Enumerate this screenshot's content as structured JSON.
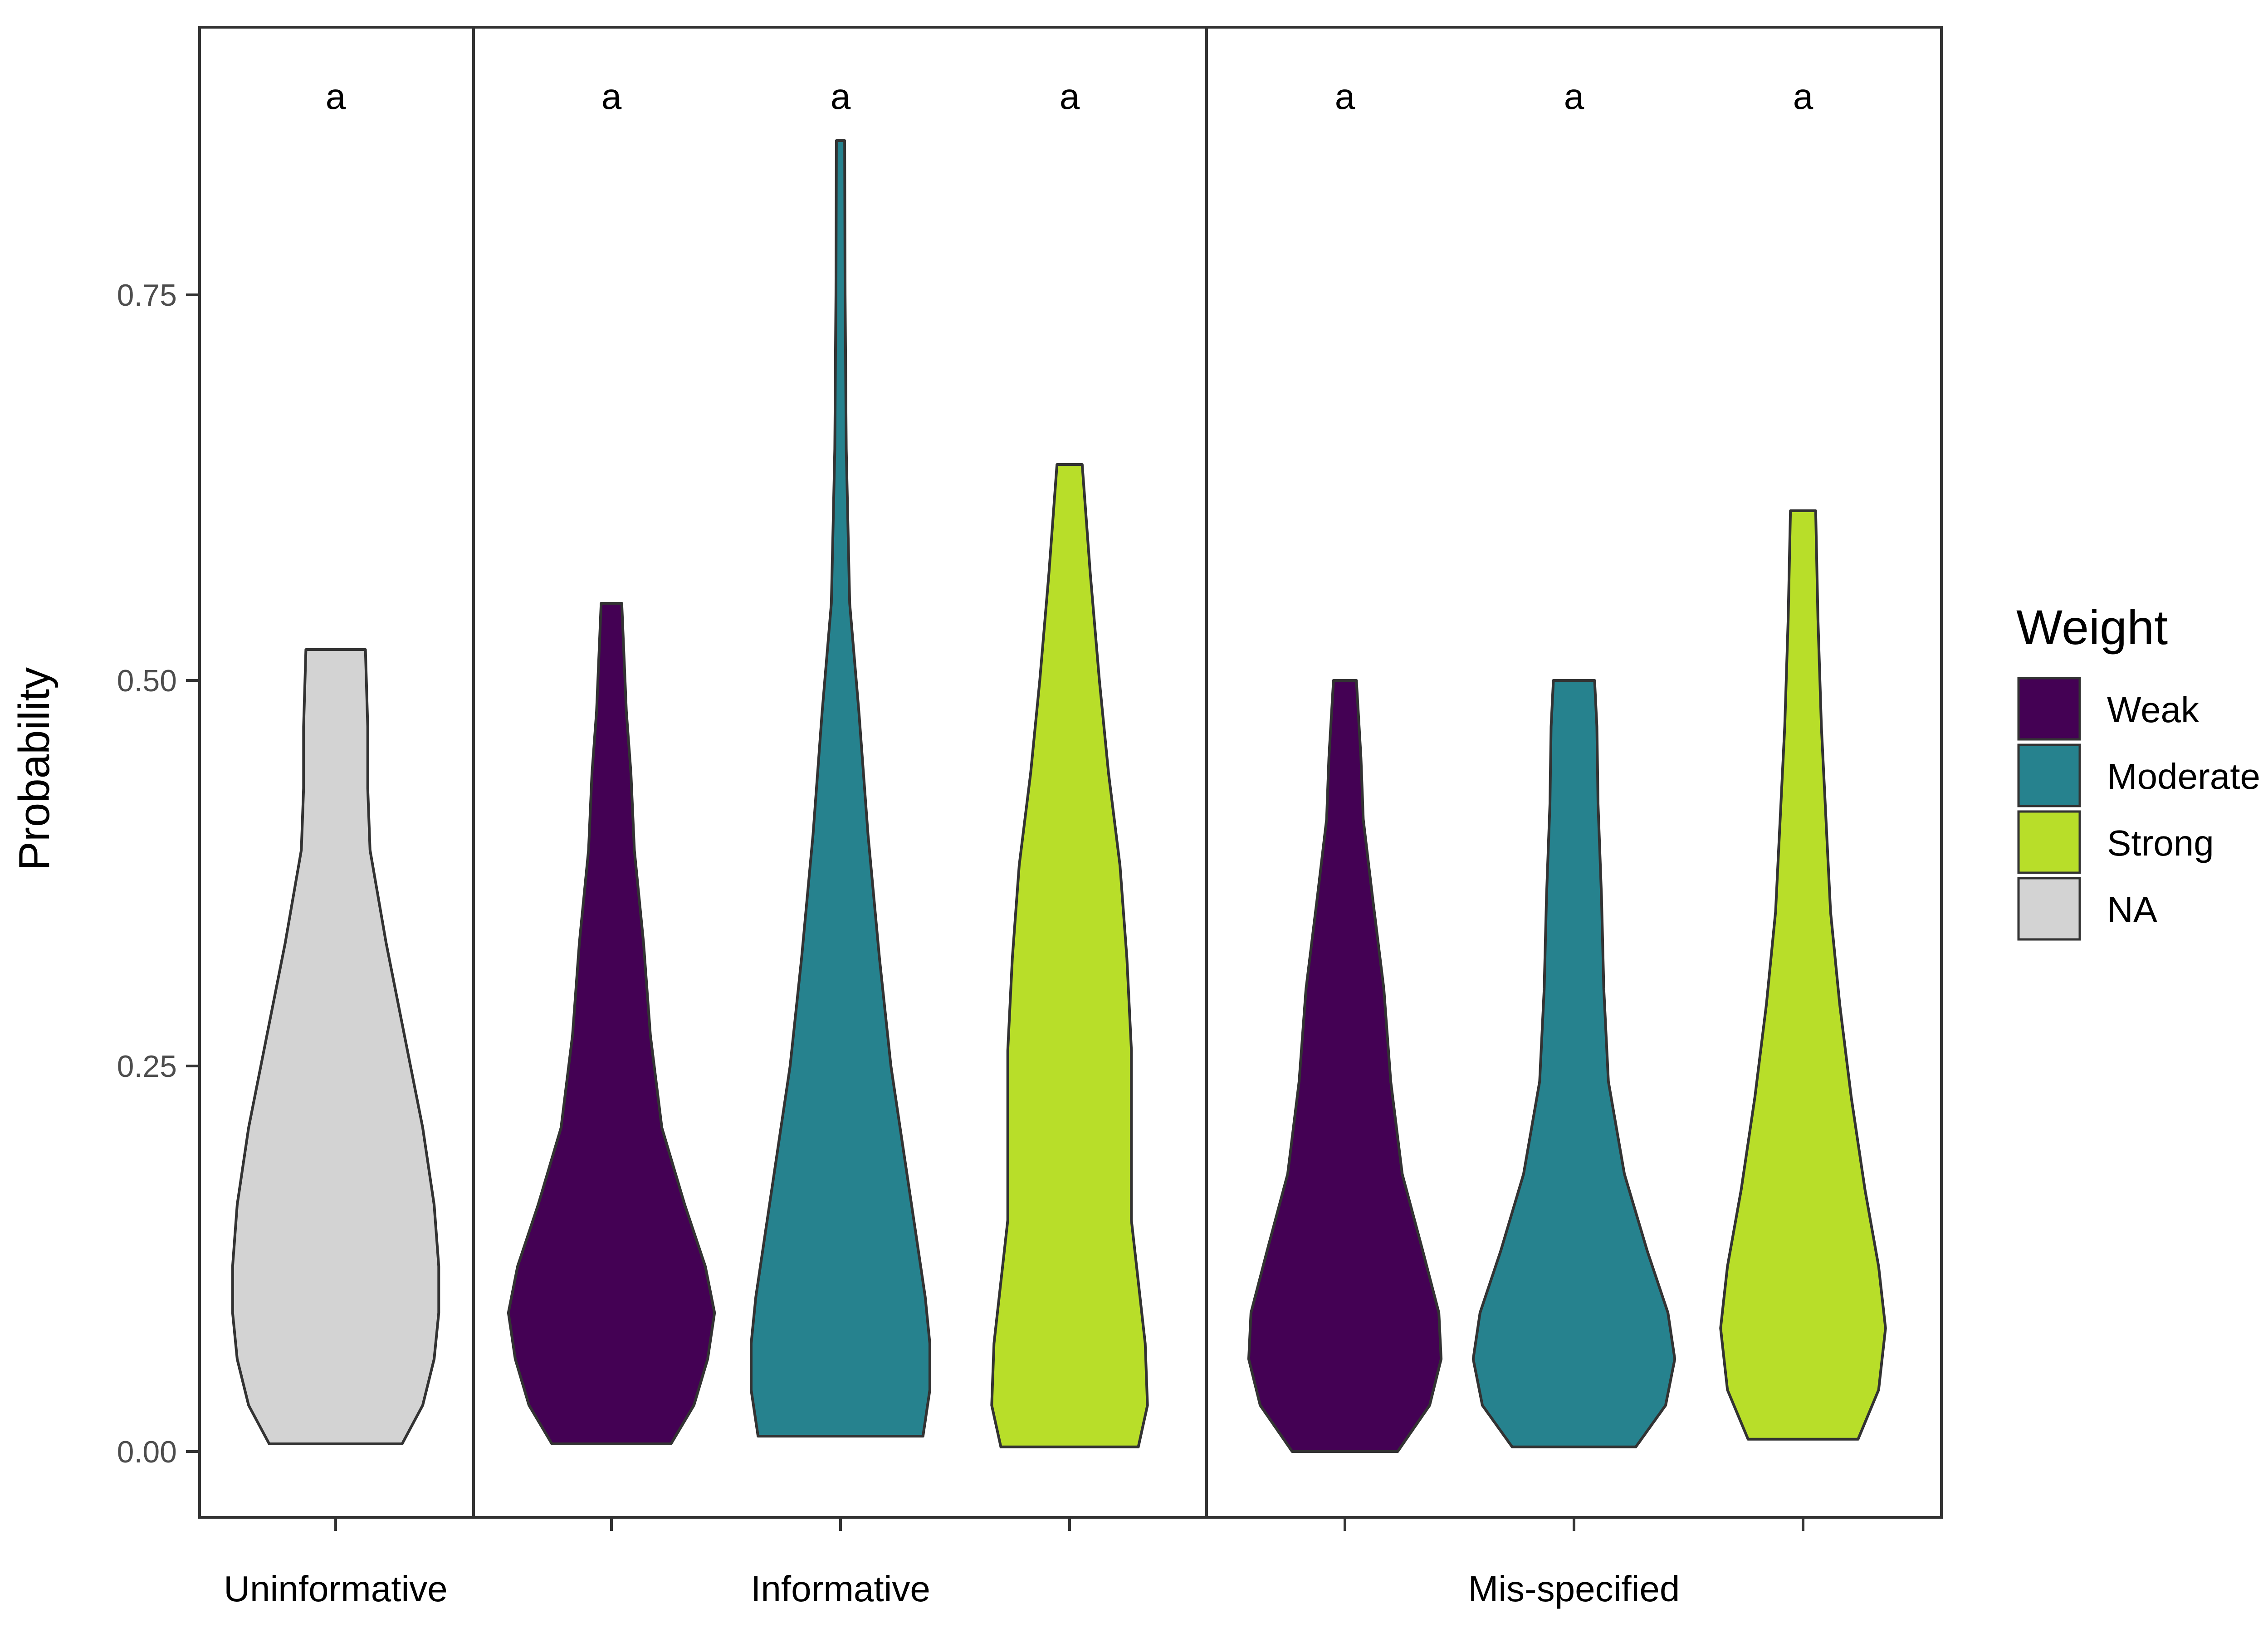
{
  "chart_data": {
    "type": "violin",
    "title": "",
    "xlabel": "",
    "ylabel": "Probability",
    "ylim": [
      -0.13,
      0.92
    ],
    "y_ticks": [
      {
        "value": 0.0,
        "label": "0.00"
      },
      {
        "value": 0.25,
        "label": "0.25"
      },
      {
        "value": 0.5,
        "label": "0.50"
      },
      {
        "value": 0.75,
        "label": "0.75"
      }
    ],
    "grid": false,
    "legend": {
      "title": "Weight",
      "position": "right",
      "entries": [
        {
          "name": "Weak",
          "color": "#440154"
        },
        {
          "name": "Moderate",
          "color": "#26828E"
        },
        {
          "name": "Strong",
          "color": "#B8DE29"
        },
        {
          "name": "NA",
          "color": "#D3D3D3"
        }
      ]
    },
    "groups": [
      {
        "label": "Uninformative",
        "slots": 1
      },
      {
        "label": "Informative",
        "slots": 3
      },
      {
        "label": "Mis-specified",
        "slots": 3
      }
    ],
    "violins": [
      {
        "group": 0,
        "weight": "NA",
        "color": "#D3D3D3",
        "significance": "a",
        "profile": [
          [
            0.005,
            0.29
          ],
          [
            0.03,
            0.38
          ],
          [
            0.06,
            0.43
          ],
          [
            0.09,
            0.45
          ],
          [
            0.12,
            0.45
          ],
          [
            0.16,
            0.43
          ],
          [
            0.21,
            0.38
          ],
          [
            0.27,
            0.3
          ],
          [
            0.33,
            0.22
          ],
          [
            0.39,
            0.15
          ],
          [
            0.43,
            0.14
          ],
          [
            0.47,
            0.14
          ],
          [
            0.52,
            0.13
          ]
        ]
      },
      {
        "group": 1,
        "weight": "Weak",
        "color": "#440154",
        "significance": "a",
        "profile": [
          [
            0.005,
            0.26
          ],
          [
            0.03,
            0.36
          ],
          [
            0.06,
            0.42
          ],
          [
            0.09,
            0.45
          ],
          [
            0.12,
            0.41
          ],
          [
            0.16,
            0.32
          ],
          [
            0.21,
            0.22
          ],
          [
            0.27,
            0.17
          ],
          [
            0.33,
            0.14
          ],
          [
            0.39,
            0.1
          ],
          [
            0.44,
            0.085
          ],
          [
            0.48,
            0.065
          ],
          [
            0.55,
            0.045
          ]
        ]
      },
      {
        "group": 1,
        "weight": "Moderate",
        "color": "#26828E",
        "significance": "a",
        "profile": [
          [
            0.01,
            0.36
          ],
          [
            0.04,
            0.39
          ],
          [
            0.07,
            0.39
          ],
          [
            0.1,
            0.37
          ],
          [
            0.14,
            0.33
          ],
          [
            0.19,
            0.28
          ],
          [
            0.25,
            0.22
          ],
          [
            0.32,
            0.17
          ],
          [
            0.4,
            0.12
          ],
          [
            0.48,
            0.08
          ],
          [
            0.55,
            0.04
          ],
          [
            0.65,
            0.025
          ],
          [
            0.75,
            0.02
          ],
          [
            0.85,
            0.018
          ]
        ]
      },
      {
        "group": 1,
        "weight": "Strong",
        "color": "#B8DE29",
        "significance": "a",
        "profile": [
          [
            0.003,
            0.3
          ],
          [
            0.03,
            0.34
          ],
          [
            0.07,
            0.33
          ],
          [
            0.11,
            0.3
          ],
          [
            0.15,
            0.27
          ],
          [
            0.2,
            0.27
          ],
          [
            0.26,
            0.27
          ],
          [
            0.32,
            0.25
          ],
          [
            0.38,
            0.22
          ],
          [
            0.44,
            0.17
          ],
          [
            0.5,
            0.13
          ],
          [
            0.57,
            0.09
          ],
          [
            0.64,
            0.055
          ]
        ]
      },
      {
        "group": 2,
        "weight": "Weak",
        "color": "#440154",
        "significance": "a",
        "profile": [
          [
            0.0,
            0.23
          ],
          [
            0.03,
            0.37
          ],
          [
            0.06,
            0.42
          ],
          [
            0.09,
            0.41
          ],
          [
            0.13,
            0.34
          ],
          [
            0.18,
            0.25
          ],
          [
            0.24,
            0.2
          ],
          [
            0.3,
            0.17
          ],
          [
            0.36,
            0.12
          ],
          [
            0.41,
            0.08
          ],
          [
            0.45,
            0.07
          ],
          [
            0.5,
            0.05
          ]
        ]
      },
      {
        "group": 2,
        "weight": "Moderate",
        "color": "#26828E",
        "significance": "a",
        "profile": [
          [
            0.003,
            0.27
          ],
          [
            0.03,
            0.4
          ],
          [
            0.06,
            0.44
          ],
          [
            0.09,
            0.41
          ],
          [
            0.13,
            0.32
          ],
          [
            0.18,
            0.22
          ],
          [
            0.24,
            0.15
          ],
          [
            0.3,
            0.13
          ],
          [
            0.36,
            0.12
          ],
          [
            0.42,
            0.105
          ],
          [
            0.47,
            0.1
          ],
          [
            0.5,
            0.09
          ]
        ]
      },
      {
        "group": 2,
        "weight": "Strong",
        "color": "#B8DE29",
        "significance": "a",
        "profile": [
          [
            0.008,
            0.24
          ],
          [
            0.04,
            0.33
          ],
          [
            0.08,
            0.36
          ],
          [
            0.12,
            0.33
          ],
          [
            0.17,
            0.27
          ],
          [
            0.23,
            0.21
          ],
          [
            0.29,
            0.16
          ],
          [
            0.35,
            0.12
          ],
          [
            0.41,
            0.1
          ],
          [
            0.47,
            0.08
          ],
          [
            0.54,
            0.065
          ],
          [
            0.61,
            0.055
          ]
        ]
      }
    ]
  }
}
